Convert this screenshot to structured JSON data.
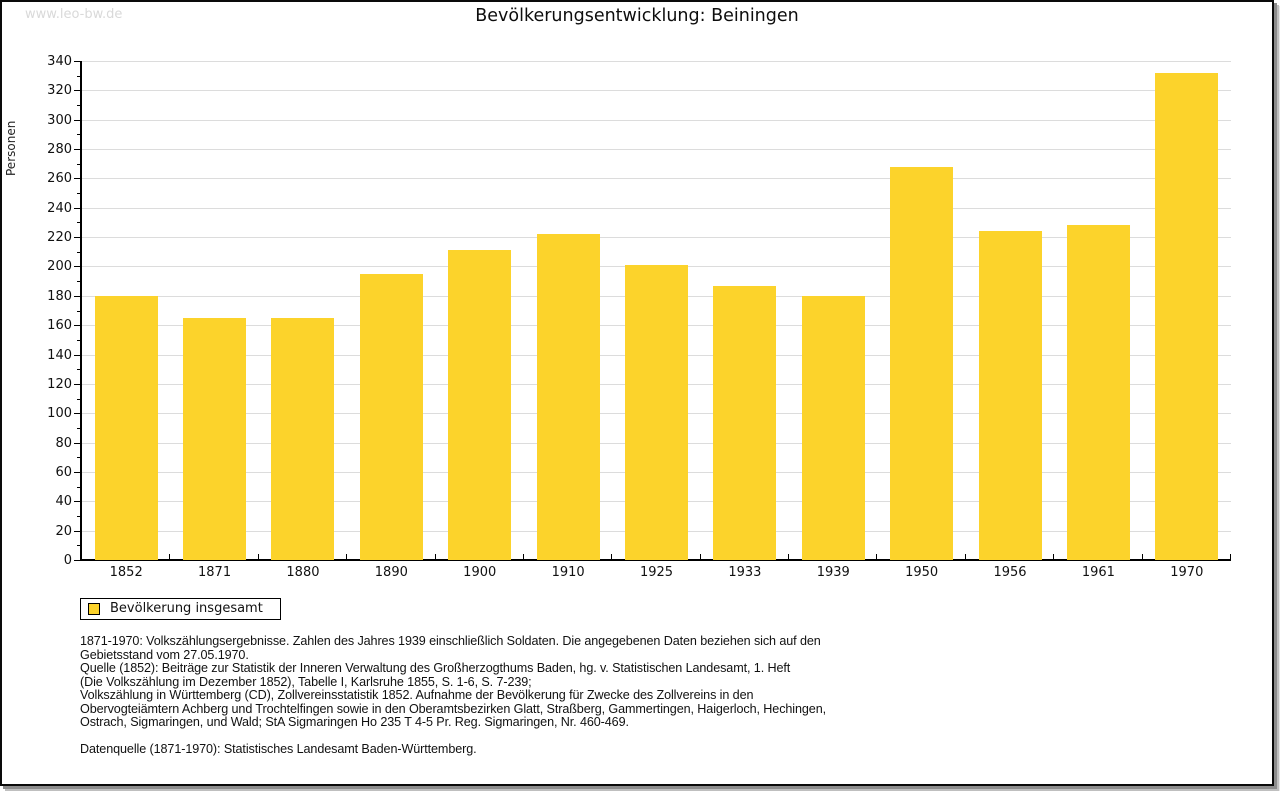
{
  "watermark": "www.leo-bw.de",
  "title": "Bevölkerungsentwicklung: Beiningen",
  "legend": {
    "label": "Bevölkerung insgesamt"
  },
  "colors": {
    "bar": "#fcd32b",
    "grid": "#dcdcdc",
    "axis": "#000000",
    "watermark": "#d9d9d9",
    "frame": "#0a0a0a"
  },
  "chart_data": {
    "type": "bar",
    "title": "Bevölkerungsentwicklung: Beiningen",
    "categories": [
      "1852",
      "1871",
      "1880",
      "1890",
      "1900",
      "1910",
      "1925",
      "1933",
      "1939",
      "1950",
      "1956",
      "1961",
      "1970"
    ],
    "values": [
      180,
      165,
      165,
      195,
      211,
      222,
      201,
      187,
      180,
      268,
      224,
      228,
      332
    ],
    "series_name": "Bevölkerung insgesamt",
    "xlabel": "",
    "ylabel": "Personen",
    "ylim": [
      0,
      340
    ],
    "ytick_major_step": 20,
    "ytick_minor_step": 10,
    "grid": true,
    "legend_position": "bottom-left",
    "bar_color": "#fcd32b"
  },
  "footnotes": {
    "lines": [
      "1871-1970: Volkszählungsergebnisse. Zahlen des Jahres 1939 einschließlich Soldaten. Die angegebenen Daten beziehen sich auf den",
      "Gebietsstand vom 27.05.1970.",
      "Quelle (1852): Beiträge zur Statistik der Inneren Verwaltung des Großherzogthums Baden, hg. v. Statistischen Landesamt, 1. Heft",
      "(Die Volkszählung im Dezember 1852), Tabelle I, Karlsruhe 1855, S. 1-6, S. 7-239;",
      "Volkszählung in Württemberg (CD), Zollvereinsstatistik 1852. Aufnahme der Bevölkerung für Zwecke des Zollvereins in den",
      "Obervogteiämtern Achberg und Trochtelfingen sowie in den Oberamtsbezirken Glatt, Straßberg, Gammertingen, Haigerloch, Hechingen,",
      "Ostrach, Sigmaringen, und Wald; StA Sigmaringen Ho 235 T 4-5 Pr. Reg. Sigmaringen, Nr. 460-469.",
      "",
      "Datenquelle (1871-1970): Statistisches Landesamt Baden-Württemberg."
    ]
  }
}
